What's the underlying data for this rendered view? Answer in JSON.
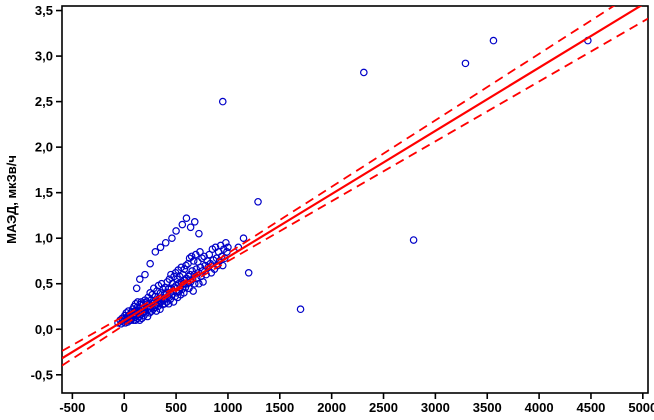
{
  "chart_data": {
    "type": "scatter",
    "title": "",
    "xlabel": "",
    "ylabel": "МАЭД, мкЗв/ч",
    "xlim": [
      -600,
      5050
    ],
    "ylim": [
      -0.7,
      3.55
    ],
    "grid": false,
    "legend": "none",
    "colors": {
      "point": "#0000C8",
      "line": "#FF0000",
      "axis": "#000000",
      "background": "#FFFFFF"
    },
    "x_ticks": [
      {
        "value": -500,
        "label": "-500"
      },
      {
        "value": 0,
        "label": "0"
      },
      {
        "value": 500,
        "label": "500"
      },
      {
        "value": 1000,
        "label": "1000"
      },
      {
        "value": 1500,
        "label": "1500"
      },
      {
        "value": 2000,
        "label": "2000"
      },
      {
        "value": 2500,
        "label": "2500"
      },
      {
        "value": 3000,
        "label": "3000"
      },
      {
        "value": 3500,
        "label": "3500"
      },
      {
        "value": 4000,
        "label": "4000"
      },
      {
        "value": 4500,
        "label": "4500"
      },
      {
        "value": 5000,
        "label": "5000"
      }
    ],
    "y_ticks": [
      {
        "value": -0.5,
        "label": "-0,5"
      },
      {
        "value": 0.0,
        "label": "0,0"
      },
      {
        "value": 0.5,
        "label": "0,5"
      },
      {
        "value": 1.0,
        "label": "1,0"
      },
      {
        "value": 1.5,
        "label": "1,5"
      },
      {
        "value": 2.0,
        "label": "2,0"
      },
      {
        "value": 2.5,
        "label": "2,5"
      },
      {
        "value": 3.0,
        "label": "3,0"
      },
      {
        "value": 3.5,
        "label": "3,5"
      }
    ],
    "trend": {
      "intercept": 0.097,
      "slope": 0.000694
    },
    "bands": {
      "upper": [
        [
          -600,
          -0.239
        ],
        [
          500,
          0.469
        ],
        [
          5050,
          3.792
        ]
      ],
      "lower": [
        [
          -600,
          -0.399
        ],
        [
          500,
          0.419
        ],
        [
          5050,
          3.412
        ]
      ]
    },
    "points": [
      [
        -60,
        0.07
      ],
      [
        -40,
        0.1
      ],
      [
        -30,
        0.06
      ],
      [
        -20,
        0.12
      ],
      [
        -10,
        0.08
      ],
      [
        0,
        0.1
      ],
      [
        5,
        0.15
      ],
      [
        10,
        0.07
      ],
      [
        15,
        0.12
      ],
      [
        20,
        0.18
      ],
      [
        25,
        0.1
      ],
      [
        30,
        0.14
      ],
      [
        35,
        0.08
      ],
      [
        40,
        0.2
      ],
      [
        45,
        0.12
      ],
      [
        50,
        0.16
      ],
      [
        55,
        0.1
      ],
      [
        60,
        0.13
      ],
      [
        65,
        0.1
      ],
      [
        70,
        0.18
      ],
      [
        75,
        0.12
      ],
      [
        80,
        0.22
      ],
      [
        85,
        0.15
      ],
      [
        90,
        0.1
      ],
      [
        95,
        0.25
      ],
      [
        100,
        0.13
      ],
      [
        100,
        0.2
      ],
      [
        105,
        0.17
      ],
      [
        110,
        0.1
      ],
      [
        110,
        0.28
      ],
      [
        115,
        0.2
      ],
      [
        120,
        0.15
      ],
      [
        125,
        0.24
      ],
      [
        130,
        0.12
      ],
      [
        130,
        0.3
      ],
      [
        135,
        0.18
      ],
      [
        140,
        0.22
      ],
      [
        145,
        0.14
      ],
      [
        150,
        0.27
      ],
      [
        150,
        0.1
      ],
      [
        155,
        0.2
      ],
      [
        160,
        0.16
      ],
      [
        165,
        0.3
      ],
      [
        170,
        0.12
      ],
      [
        175,
        0.22
      ],
      [
        180,
        0.18
      ],
      [
        185,
        0.28
      ],
      [
        190,
        0.15
      ],
      [
        195,
        0.24
      ],
      [
        200,
        0.2
      ],
      [
        200,
        0.32
      ],
      [
        210,
        0.18
      ],
      [
        215,
        0.3
      ],
      [
        220,
        0.24
      ],
      [
        225,
        0.14
      ],
      [
        230,
        0.35
      ],
      [
        235,
        0.22
      ],
      [
        240,
        0.28
      ],
      [
        245,
        0.18
      ],
      [
        250,
        0.4
      ],
      [
        255,
        0.25
      ],
      [
        260,
        0.32
      ],
      [
        265,
        0.2
      ],
      [
        270,
        0.38
      ],
      [
        275,
        0.28
      ],
      [
        280,
        0.22
      ],
      [
        285,
        0.45
      ],
      [
        290,
        0.3
      ],
      [
        295,
        0.24
      ],
      [
        300,
        0.36
      ],
      [
        305,
        0.28
      ],
      [
        310,
        0.2
      ],
      [
        315,
        0.42
      ],
      [
        320,
        0.3
      ],
      [
        325,
        0.25
      ],
      [
        330,
        0.48
      ],
      [
        335,
        0.34
      ],
      [
        340,
        0.28
      ],
      [
        345,
        0.22
      ],
      [
        350,
        0.4
      ],
      [
        355,
        0.3
      ],
      [
        360,
        0.5
      ],
      [
        365,
        0.35
      ],
      [
        370,
        0.27
      ],
      [
        375,
        0.44
      ],
      [
        380,
        0.32
      ],
      [
        385,
        0.38
      ],
      [
        390,
        0.28
      ],
      [
        395,
        0.46
      ],
      [
        400,
        0.34
      ],
      [
        405,
        0.4
      ],
      [
        410,
        0.3
      ],
      [
        415,
        0.52
      ],
      [
        420,
        0.36
      ],
      [
        425,
        0.44
      ],
      [
        430,
        0.28
      ],
      [
        435,
        0.55
      ],
      [
        440,
        0.4
      ],
      [
        445,
        0.33
      ],
      [
        450,
        0.6
      ],
      [
        455,
        0.45
      ],
      [
        460,
        0.38
      ],
      [
        465,
        0.5
      ],
      [
        470,
        0.42
      ],
      [
        475,
        0.3
      ],
      [
        480,
        0.58
      ],
      [
        485,
        0.46
      ],
      [
        490,
        0.36
      ],
      [
        495,
        0.62
      ],
      [
        500,
        0.48
      ],
      [
        505,
        0.4
      ],
      [
        510,
        0.55
      ],
      [
        515,
        0.35
      ],
      [
        520,
        0.65
      ],
      [
        525,
        0.5
      ],
      [
        530,
        0.42
      ],
      [
        535,
        0.58
      ],
      [
        540,
        0.46
      ],
      [
        545,
        0.38
      ],
      [
        550,
        0.68
      ],
      [
        555,
        0.52
      ],
      [
        560,
        0.44
      ],
      [
        565,
        0.6
      ],
      [
        570,
        0.5
      ],
      [
        575,
        0.4
      ],
      [
        580,
        0.66
      ],
      [
        585,
        0.54
      ],
      [
        590,
        0.46
      ],
      [
        595,
        0.7
      ],
      [
        600,
        0.56
      ],
      [
        610,
        0.5
      ],
      [
        615,
        0.72
      ],
      [
        620,
        0.58
      ],
      [
        625,
        0.45
      ],
      [
        630,
        0.78
      ],
      [
        635,
        0.6
      ],
      [
        640,
        0.52
      ],
      [
        650,
        0.8
      ],
      [
        655,
        0.64
      ],
      [
        660,
        0.55
      ],
      [
        665,
        0.42
      ],
      [
        670,
        0.75
      ],
      [
        675,
        0.6
      ],
      [
        680,
        0.5
      ],
      [
        690,
        0.82
      ],
      [
        695,
        0.66
      ],
      [
        700,
        0.56
      ],
      [
        710,
        0.74
      ],
      [
        715,
        0.62
      ],
      [
        720,
        0.5
      ],
      [
        730,
        0.85
      ],
      [
        735,
        0.68
      ],
      [
        740,
        0.58
      ],
      [
        750,
        0.78
      ],
      [
        755,
        0.64
      ],
      [
        760,
        0.52
      ],
      [
        770,
        0.8
      ],
      [
        780,
        0.7
      ],
      [
        790,
        0.6
      ],
      [
        800,
        0.75
      ],
      [
        810,
        0.68
      ],
      [
        820,
        0.82
      ],
      [
        830,
        0.72
      ],
      [
        840,
        0.62
      ],
      [
        850,
        0.88
      ],
      [
        860,
        0.76
      ],
      [
        870,
        0.66
      ],
      [
        880,
        0.9
      ],
      [
        890,
        0.78
      ],
      [
        900,
        0.7
      ],
      [
        910,
        0.85
      ],
      [
        920,
        0.75
      ],
      [
        930,
        0.92
      ],
      [
        940,
        0.8
      ],
      [
        950,
        0.7
      ],
      [
        960,
        0.88
      ],
      [
        970,
        0.78
      ],
      [
        980,
        0.95
      ],
      [
        990,
        0.85
      ],
      [
        1000,
        0.9
      ],
      [
        560,
        1.15
      ],
      [
        600,
        1.22
      ],
      [
        640,
        1.12
      ],
      [
        680,
        1.18
      ],
      [
        720,
        1.05
      ],
      [
        300,
        0.85
      ],
      [
        350,
        0.9
      ],
      [
        400,
        0.95
      ],
      [
        250,
        0.72
      ],
      [
        200,
        0.6
      ],
      [
        150,
        0.55
      ],
      [
        120,
        0.45
      ],
      [
        460,
        1.0
      ],
      [
        500,
        1.08
      ],
      [
        1100,
        0.9
      ],
      [
        1150,
        1.0
      ],
      [
        1200,
        0.62
      ],
      [
        950,
        2.5
      ],
      [
        2310,
        2.82
      ],
      [
        3290,
        2.92
      ],
      [
        3560,
        3.17
      ],
      [
        4470,
        3.17
      ],
      [
        2790,
        0.98
      ],
      [
        1700,
        0.22
      ],
      [
        1290,
        1.4
      ]
    ]
  }
}
